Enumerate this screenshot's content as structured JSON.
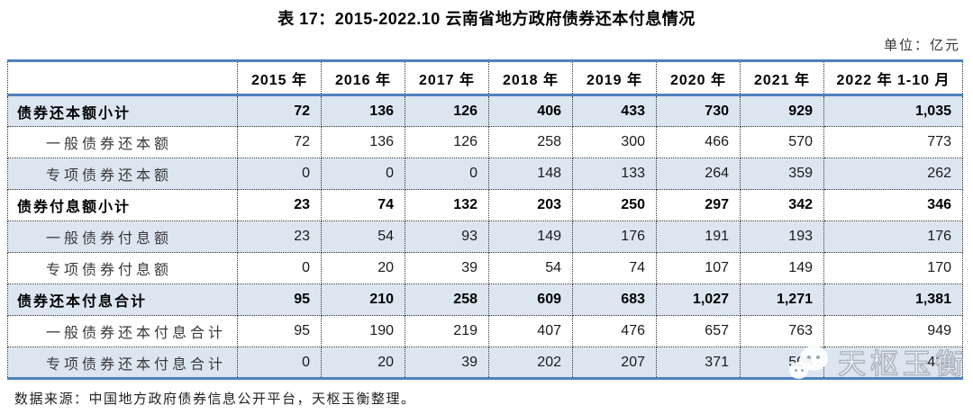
{
  "title": "表 17：2015-2022.10 云南省地方政府债券还本付息情况",
  "unit_label": "单位：亿元",
  "source_note": "数据来源：中国地方政府债券信息公开平台，天枢玉衡整理。",
  "watermark": {
    "text": "天枢玉衡",
    "icon": "wechat-bubbles-icon"
  },
  "colors": {
    "accent_line": "#4f81bd",
    "stripe": "#dce6f1",
    "dotted_border": "#333333"
  },
  "table": {
    "columns": [
      "",
      "2015 年",
      "2016 年",
      "2017 年",
      "2018 年",
      "2019 年",
      "2020 年",
      "2021 年",
      "2022 年 1-10 月"
    ],
    "rows": [
      {
        "label": "债券还本额小计",
        "bold": true,
        "values": [
          "72",
          "136",
          "126",
          "406",
          "433",
          "730",
          "929",
          "1,035"
        ]
      },
      {
        "label": "一般债券还本额",
        "bold": false,
        "values": [
          "72",
          "136",
          "126",
          "258",
          "300",
          "466",
          "570",
          "773"
        ]
      },
      {
        "label": "专项债券还本额",
        "bold": false,
        "values": [
          "0",
          "0",
          "0",
          "148",
          "133",
          "264",
          "359",
          "262"
        ]
      },
      {
        "label": "债券付息额小计",
        "bold": true,
        "values": [
          "23",
          "74",
          "132",
          "203",
          "250",
          "297",
          "342",
          "346"
        ]
      },
      {
        "label": "一般债券付息额",
        "bold": false,
        "values": [
          "23",
          "54",
          "93",
          "149",
          "176",
          "191",
          "193",
          "176"
        ]
      },
      {
        "label": "专项债券付息额",
        "bold": false,
        "values": [
          "0",
          "20",
          "39",
          "54",
          "74",
          "107",
          "149",
          "170"
        ]
      },
      {
        "label": "债券还本付息合计",
        "bold": true,
        "values": [
          "95",
          "210",
          "258",
          "609",
          "683",
          "1,027",
          "1,271",
          "1,381"
        ]
      },
      {
        "label": "一般债券还本付息合计",
        "bold": false,
        "values": [
          "95",
          "190",
          "219",
          "407",
          "476",
          "657",
          "763",
          "949"
        ]
      },
      {
        "label": "专项债券还本付息合计",
        "bold": false,
        "values": [
          "0",
          "20",
          "39",
          "202",
          "207",
          "371",
          "508",
          "432"
        ]
      }
    ]
  },
  "chart_data": {
    "type": "table",
    "title": "表 17：2015-2022.10 云南省地方政府债券还本付息情况",
    "unit": "亿元",
    "categories": [
      "2015",
      "2016",
      "2017",
      "2018",
      "2019",
      "2020",
      "2021",
      "2022.1-10"
    ],
    "series": [
      {
        "name": "债券还本额小计",
        "values": [
          72,
          136,
          126,
          406,
          433,
          730,
          929,
          1035
        ]
      },
      {
        "name": "一般债券还本额",
        "values": [
          72,
          136,
          126,
          258,
          300,
          466,
          570,
          773
        ]
      },
      {
        "name": "专项债券还本额",
        "values": [
          0,
          0,
          0,
          148,
          133,
          264,
          359,
          262
        ]
      },
      {
        "name": "债券付息额小计",
        "values": [
          23,
          74,
          132,
          203,
          250,
          297,
          342,
          346
        ]
      },
      {
        "name": "一般债券付息额",
        "values": [
          23,
          54,
          93,
          149,
          176,
          191,
          193,
          176
        ]
      },
      {
        "name": "专项债券付息额",
        "values": [
          0,
          20,
          39,
          54,
          74,
          107,
          149,
          170
        ]
      },
      {
        "name": "债券还本付息合计",
        "values": [
          95,
          210,
          258,
          609,
          683,
          1027,
          1271,
          1381
        ]
      },
      {
        "name": "一般债券还本付息合计",
        "values": [
          95,
          190,
          219,
          407,
          476,
          657,
          763,
          949
        ]
      },
      {
        "name": "专项债券还本付息合计",
        "values": [
          0,
          20,
          39,
          202,
          207,
          371,
          508,
          432
        ]
      }
    ]
  }
}
